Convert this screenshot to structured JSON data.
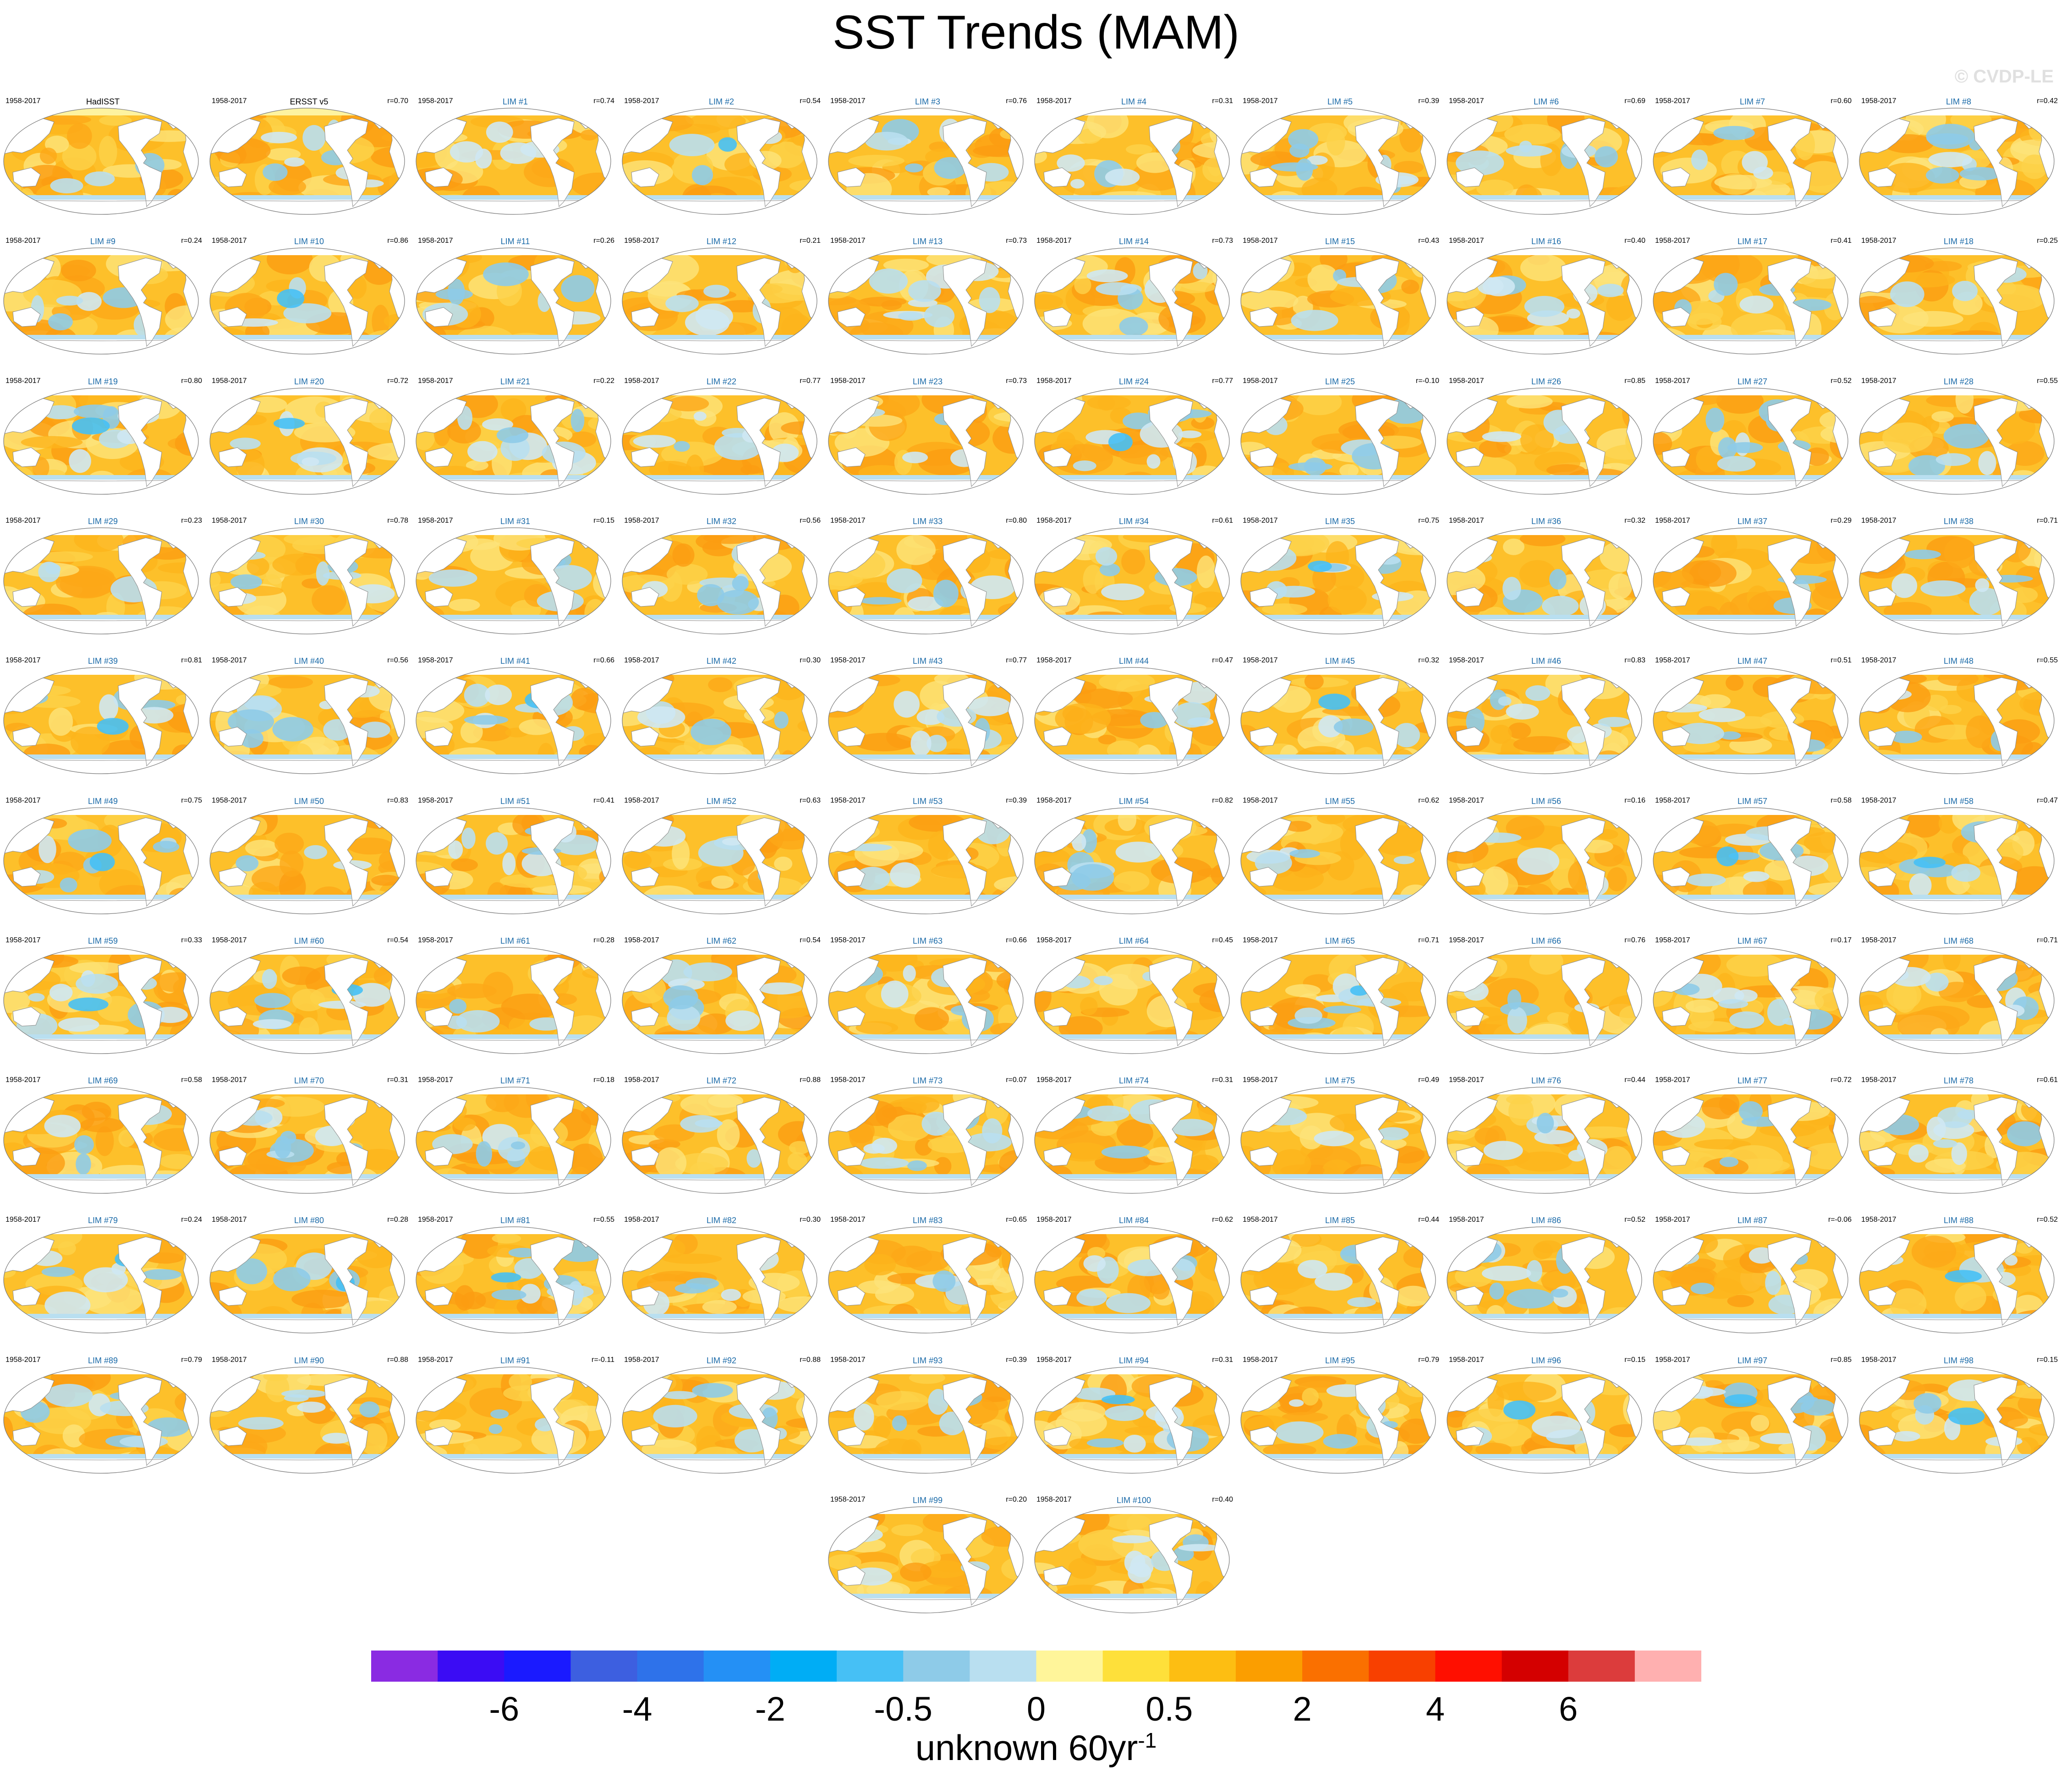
{
  "title": "SST Trends (MAM)",
  "watermark": "© CVDP-LE",
  "units_base": "unknown 60yr",
  "units_exp": "-1",
  "colorbar": {
    "colors": [
      "#8a2be2",
      "#3b0cf4",
      "#1a1aff",
      "#3d5fe0",
      "#2e72ea",
      "#2490f5",
      "#00adf5",
      "#46c0f5",
      "#8ecbe8",
      "#b9dff0",
      "#fff59a",
      "#fee03a",
      "#fdbe12",
      "#fb9e00",
      "#fa7000",
      "#f84000",
      "#ff0f00",
      "#d40000",
      "#dc3c3c",
      "#ffb0b0"
    ],
    "labels": [
      "-6",
      "-4",
      "-2",
      "-0.5",
      "0",
      "0.5",
      "2",
      "4",
      "6"
    ]
  },
  "chart_data": {
    "type": "heatmap",
    "title": "SST Trends (MAM)",
    "period": "1958-2017",
    "units": "unknown 60yr-1",
    "colorbar_labels": [
      "-6",
      "-4",
      "-2",
      "-0.5",
      "0",
      "0.5",
      "2",
      "4",
      "6"
    ],
    "panels": [
      {
        "name": "HadISST",
        "r": ""
      },
      {
        "name": "ERSST v5",
        "r": "r=0.70"
      },
      {
        "name": "LIM #1",
        "r": "r=0.74"
      },
      {
        "name": "LIM #2",
        "r": "r=0.54"
      },
      {
        "name": "LIM #3",
        "r": "r=0.76"
      },
      {
        "name": "LIM #4",
        "r": "r=0.31"
      },
      {
        "name": "LIM #5",
        "r": "r=0.39"
      },
      {
        "name": "LIM #6",
        "r": "r=0.69"
      },
      {
        "name": "LIM #7",
        "r": "r=0.60"
      },
      {
        "name": "LIM #8",
        "r": "r=0.42"
      },
      {
        "name": "LIM #9",
        "r": "r=0.24"
      },
      {
        "name": "LIM #10",
        "r": "r=0.86"
      },
      {
        "name": "LIM #11",
        "r": "r=0.26"
      },
      {
        "name": "LIM #12",
        "r": "r=0.21"
      },
      {
        "name": "LIM #13",
        "r": "r=0.73"
      },
      {
        "name": "LIM #14",
        "r": "r=0.73"
      },
      {
        "name": "LIM #15",
        "r": "r=0.43"
      },
      {
        "name": "LIM #16",
        "r": "r=0.40"
      },
      {
        "name": "LIM #17",
        "r": "r=0.41"
      },
      {
        "name": "LIM #18",
        "r": "r=0.25"
      },
      {
        "name": "LIM #19",
        "r": "r=0.80"
      },
      {
        "name": "LIM #20",
        "r": "r=0.72"
      },
      {
        "name": "LIM #21",
        "r": "r=0.22"
      },
      {
        "name": "LIM #22",
        "r": "r=0.77"
      },
      {
        "name": "LIM #23",
        "r": "r=0.73"
      },
      {
        "name": "LIM #24",
        "r": "r=0.77"
      },
      {
        "name": "LIM #25",
        "r": "r=-0.10"
      },
      {
        "name": "LIM #26",
        "r": "r=0.85"
      },
      {
        "name": "LIM #27",
        "r": "r=0.52"
      },
      {
        "name": "LIM #28",
        "r": "r=0.55"
      },
      {
        "name": "LIM #29",
        "r": "r=0.23"
      },
      {
        "name": "LIM #30",
        "r": "r=0.78"
      },
      {
        "name": "LIM #31",
        "r": "r=0.15"
      },
      {
        "name": "LIM #32",
        "r": "r=0.56"
      },
      {
        "name": "LIM #33",
        "r": "r=0.80"
      },
      {
        "name": "LIM #34",
        "r": "r=0.61"
      },
      {
        "name": "LIM #35",
        "r": "r=0.75"
      },
      {
        "name": "LIM #36",
        "r": "r=0.32"
      },
      {
        "name": "LIM #37",
        "r": "r=0.29"
      },
      {
        "name": "LIM #38",
        "r": "r=0.71"
      },
      {
        "name": "LIM #39",
        "r": "r=0.81"
      },
      {
        "name": "LIM #40",
        "r": "r=0.56"
      },
      {
        "name": "LIM #41",
        "r": "r=0.66"
      },
      {
        "name": "LIM #42",
        "r": "r=0.30"
      },
      {
        "name": "LIM #43",
        "r": "r=0.77"
      },
      {
        "name": "LIM #44",
        "r": "r=0.47"
      },
      {
        "name": "LIM #45",
        "r": "r=0.32"
      },
      {
        "name": "LIM #46",
        "r": "r=0.83"
      },
      {
        "name": "LIM #47",
        "r": "r=0.51"
      },
      {
        "name": "LIM #48",
        "r": "r=0.55"
      },
      {
        "name": "LIM #49",
        "r": "r=0.75"
      },
      {
        "name": "LIM #50",
        "r": "r=0.83"
      },
      {
        "name": "LIM #51",
        "r": "r=0.41"
      },
      {
        "name": "LIM #52",
        "r": "r=0.63"
      },
      {
        "name": "LIM #53",
        "r": "r=0.39"
      },
      {
        "name": "LIM #54",
        "r": "r=0.82"
      },
      {
        "name": "LIM #55",
        "r": "r=0.62"
      },
      {
        "name": "LIM #56",
        "r": "r=0.16"
      },
      {
        "name": "LIM #57",
        "r": "r=0.58"
      },
      {
        "name": "LIM #58",
        "r": "r=0.47"
      },
      {
        "name": "LIM #59",
        "r": "r=0.33"
      },
      {
        "name": "LIM #60",
        "r": "r=0.54"
      },
      {
        "name": "LIM #61",
        "r": "r=0.28"
      },
      {
        "name": "LIM #62",
        "r": "r=0.54"
      },
      {
        "name": "LIM #63",
        "r": "r=0.66"
      },
      {
        "name": "LIM #64",
        "r": "r=0.45"
      },
      {
        "name": "LIM #65",
        "r": "r=0.71"
      },
      {
        "name": "LIM #66",
        "r": "r=0.76"
      },
      {
        "name": "LIM #67",
        "r": "r=0.17"
      },
      {
        "name": "LIM #68",
        "r": "r=0.71"
      },
      {
        "name": "LIM #69",
        "r": "r=0.58"
      },
      {
        "name": "LIM #70",
        "r": "r=0.31"
      },
      {
        "name": "LIM #71",
        "r": "r=0.18"
      },
      {
        "name": "LIM #72",
        "r": "r=0.88"
      },
      {
        "name": "LIM #73",
        "r": "r=0.07"
      },
      {
        "name": "LIM #74",
        "r": "r=0.31"
      },
      {
        "name": "LIM #75",
        "r": "r=0.49"
      },
      {
        "name": "LIM #76",
        "r": "r=0.44"
      },
      {
        "name": "LIM #77",
        "r": "r=0.72"
      },
      {
        "name": "LIM #78",
        "r": "r=0.61"
      },
      {
        "name": "LIM #79",
        "r": "r=0.24"
      },
      {
        "name": "LIM #80",
        "r": "r=0.28"
      },
      {
        "name": "LIM #81",
        "r": "r=0.55"
      },
      {
        "name": "LIM #82",
        "r": "r=0.30"
      },
      {
        "name": "LIM #83",
        "r": "r=0.65"
      },
      {
        "name": "LIM #84",
        "r": "r=0.62"
      },
      {
        "name": "LIM #85",
        "r": "r=0.44"
      },
      {
        "name": "LIM #86",
        "r": "r=0.52"
      },
      {
        "name": "LIM #87",
        "r": "r=-0.06"
      },
      {
        "name": "LIM #88",
        "r": "r=0.52"
      },
      {
        "name": "LIM #89",
        "r": "r=0.79"
      },
      {
        "name": "LIM #90",
        "r": "r=0.88"
      },
      {
        "name": "LIM #91",
        "r": "r=-0.11"
      },
      {
        "name": "LIM #92",
        "r": "r=0.88"
      },
      {
        "name": "LIM #93",
        "r": "r=0.39"
      },
      {
        "name": "LIM #94",
        "r": "r=0.31"
      },
      {
        "name": "LIM #95",
        "r": "r=0.79"
      },
      {
        "name": "LIM #96",
        "r": "r=0.15"
      },
      {
        "name": "LIM #97",
        "r": "r=0.85"
      },
      {
        "name": "LIM #98",
        "r": "r=0.15"
      },
      {
        "name": "LIM #99",
        "r": "r=0.20"
      },
      {
        "name": "LIM #100",
        "r": "r=0.40"
      }
    ]
  }
}
